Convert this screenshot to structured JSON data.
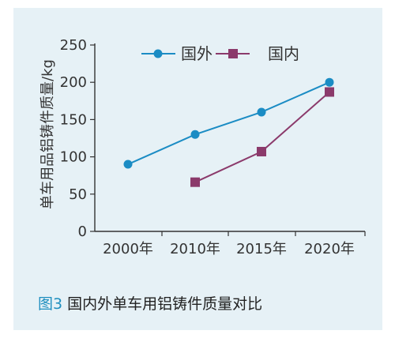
{
  "caption": {
    "figure_number": "图3",
    "text": " 国内外单车用铝铸件质量对比"
  },
  "chart_data": {
    "type": "line",
    "title": "",
    "xlabel": "",
    "ylabel": "单车用品铝铸件质量/kg",
    "categories": [
      "2000年",
      "2010年",
      "2015年",
      "2020年"
    ],
    "ylim": [
      0,
      250
    ],
    "yticks": [
      0,
      50,
      100,
      150,
      200,
      250
    ],
    "legend_position": "top-center",
    "grid": false,
    "series": [
      {
        "name": "国外",
        "color": "#1b8cc4",
        "marker": "circle",
        "values": [
          90,
          130,
          160,
          200
        ]
      },
      {
        "name": "国内",
        "color": "#8b3a6b",
        "marker": "square",
        "values": [
          null,
          66,
          107,
          187
        ]
      }
    ]
  }
}
